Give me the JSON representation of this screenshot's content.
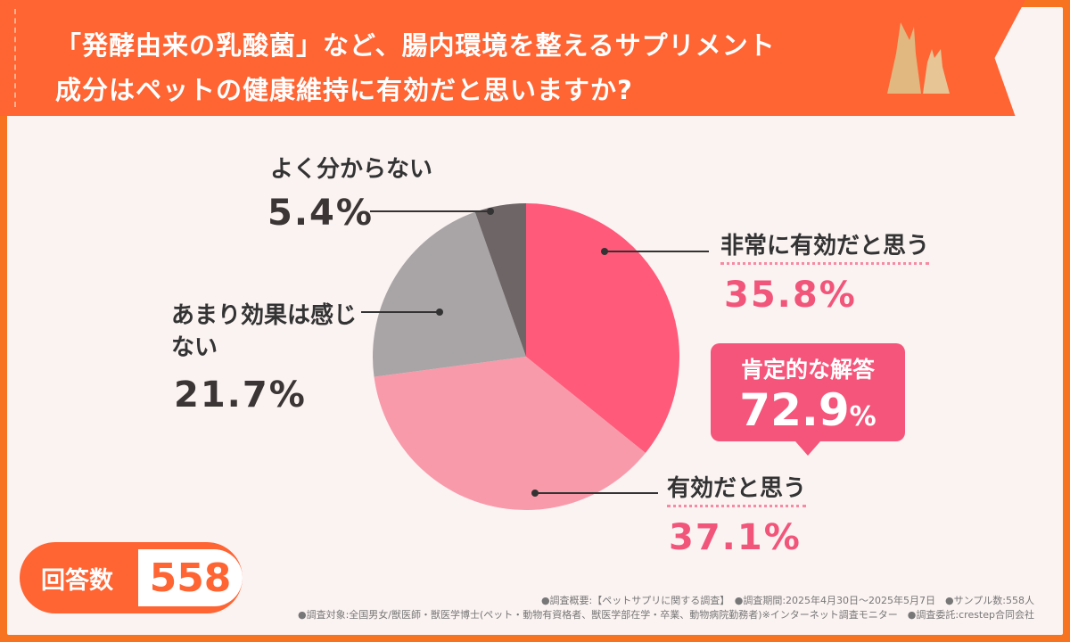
{
  "header": {
    "title_line1": "「発酵由来の乳酸菌」など、腸内環境を整えるサプリメント",
    "title_line2": "成分はペットの健康維持に有効だと思いますか?"
  },
  "badge": {
    "label": "肯定的な解答",
    "value": "72.9",
    "unit": "%"
  },
  "respondents": {
    "label": "回答数",
    "value": "558"
  },
  "footer": {
    "line1": "●調査概要:【ペットサプリに関する調査】　●調査期間:2025年4月30日～2025年5月7日　●サンプル数:558人",
    "line2": "●調査対象:全国男女/獣医師・獣医学博士(ペット・動物有資格者、獣医学部在学・卒業、動物病院勤務者)※インターネット調査モニター　●調査委託:crestep合同会社"
  },
  "chart_data": {
    "type": "pie",
    "start": "12 o'clock",
    "direction": "clockwise",
    "slices": [
      {
        "label": "非常に有効だと思う",
        "value": 35.8,
        "display": "35.8%",
        "color": "#ff5a7a"
      },
      {
        "label": "有効だと思う",
        "value": 37.1,
        "display": "37.1%",
        "color": "#f99aab"
      },
      {
        "label": "あまり効果は感じない",
        "value": 21.7,
        "display": "21.7%",
        "color": "#a9a5a6"
      },
      {
        "label": "よく分からない",
        "value": 5.4,
        "display": "5.4%",
        "color": "#6d6566"
      }
    ]
  }
}
